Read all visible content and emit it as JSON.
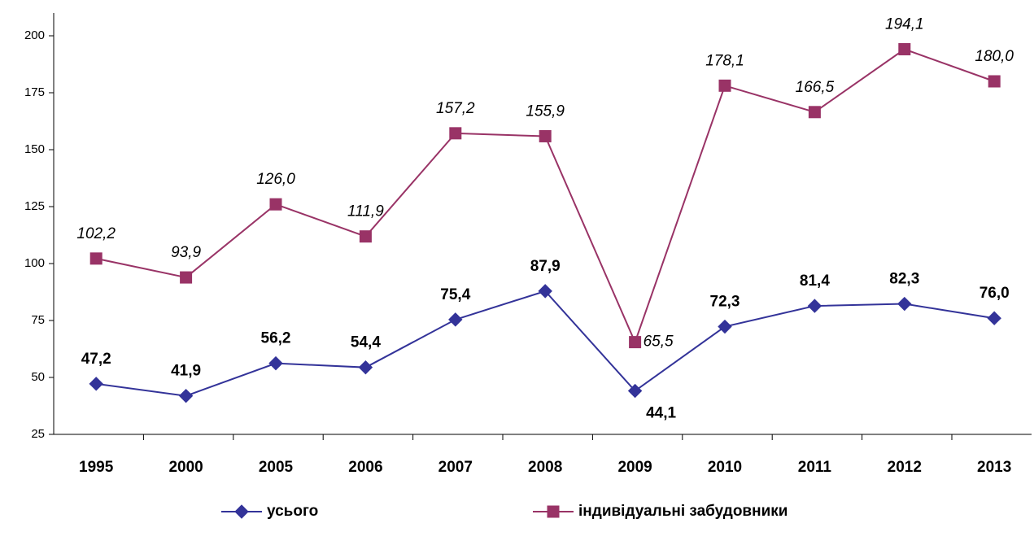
{
  "chart_data": {
    "type": "line",
    "categories": [
      "1995",
      "2000",
      "2005",
      "2006",
      "2007",
      "2008",
      "2009",
      "2010",
      "2011",
      "2012",
      "2013"
    ],
    "series": [
      {
        "name": "усього",
        "color": "#333399",
        "marker": "diamond",
        "values": [
          47.2,
          41.9,
          56.2,
          54.4,
          75.4,
          87.9,
          44.1,
          72.3,
          81.4,
          82.3,
          76.0
        ],
        "value_labels": [
          "47,2",
          "41,9",
          "56,2",
          "54,4",
          "75,4",
          "87,9",
          "44,1",
          "72,3",
          "81,4",
          "82,3",
          "76,0"
        ]
      },
      {
        "name": "індивідуальні забудовники",
        "color": "#993366",
        "marker": "square",
        "values": [
          102.2,
          93.9,
          126.0,
          111.9,
          157.2,
          155.9,
          65.5,
          178.1,
          166.5,
          194.1,
          180.0
        ],
        "value_labels": [
          "102,2",
          "93,9",
          "126,0",
          "111,9",
          "157,2",
          "155,9",
          "65,5",
          "178,1",
          "166,5",
          "194,1",
          "180,0"
        ]
      }
    ],
    "ylim": [
      25,
      210
    ],
    "yticks": [
      25,
      50,
      75,
      100,
      125,
      150,
      175,
      200
    ],
    "grid": false
  }
}
